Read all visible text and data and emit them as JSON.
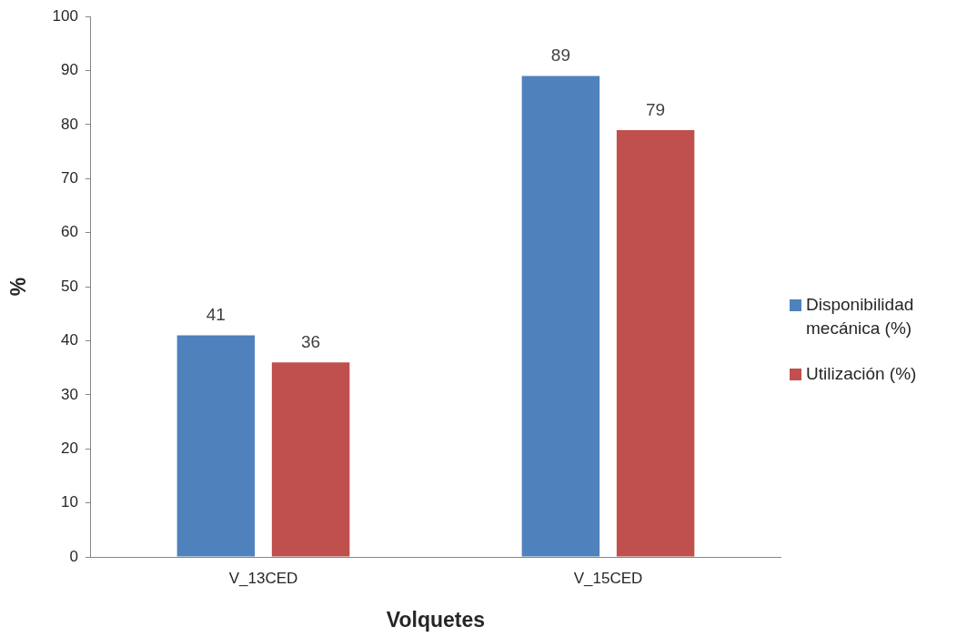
{
  "chart_data": {
    "type": "bar",
    "xlabel": "Volquetes",
    "ylabel": "%",
    "categories": [
      "V_13CED",
      "V_15CED"
    ],
    "series": [
      {
        "name": "Disponibilidad mecánica (%)",
        "color": "#4f81bd",
        "values": [
          41,
          89
        ]
      },
      {
        "name": "Utilización (%)",
        "color": "#c0504d",
        "values": [
          36,
          79
        ]
      }
    ],
    "ylim": [
      0,
      100
    ],
    "yticks": [
      0,
      10,
      20,
      30,
      40,
      50,
      60,
      70,
      80,
      90,
      100
    ],
    "data_labels": true,
    "legend": "right"
  }
}
